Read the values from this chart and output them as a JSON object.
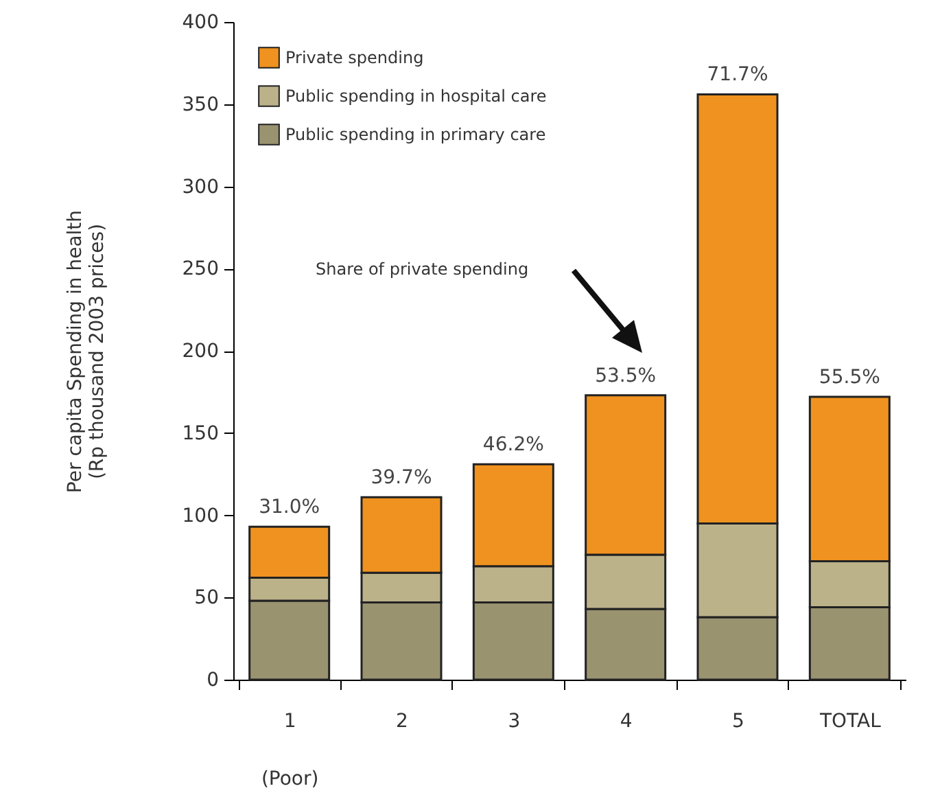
{
  "chart_data": {
    "type": "bar",
    "stacked": true,
    "categories": [
      "1\n(Poor)",
      "2",
      "3",
      "4",
      "5",
      "TOTAL"
    ],
    "ylabel": "Per capita Spending in health\n(Rp thousand  2003 prices)",
    "ylim": [
      0,
      400
    ],
    "yticks": [
      0,
      50,
      100,
      150,
      200,
      250,
      300,
      350,
      400
    ],
    "grid": false,
    "legend": "top left",
    "series": [
      {
        "name": "Public spending in primary care",
        "color": "#9a9370",
        "values": [
          48,
          47,
          47,
          43,
          38,
          44
        ]
      },
      {
        "name": "Public spending in hospital care",
        "color": "#bcb28a",
        "values": [
          14,
          18,
          22,
          33,
          57,
          28
        ]
      },
      {
        "name": "Private spending",
        "color": "#f0921f",
        "values": [
          31,
          46,
          62,
          97,
          261,
          100
        ]
      }
    ],
    "annotations": [
      {
        "text": "31.0%",
        "x": "1\n(Poor)",
        "y": 93
      },
      {
        "text": "39.7%",
        "x": "2",
        "y": 111
      },
      {
        "text": "46.2%",
        "x": "3",
        "y": 131
      },
      {
        "text": "53.5%",
        "x": "4",
        "y": 173
      },
      {
        "text": "71.7%",
        "x": "5",
        "y": 356
      },
      {
        "text": "55.5%",
        "x": "TOTAL",
        "y": 172
      },
      "Share of private spending"
    ]
  }
}
